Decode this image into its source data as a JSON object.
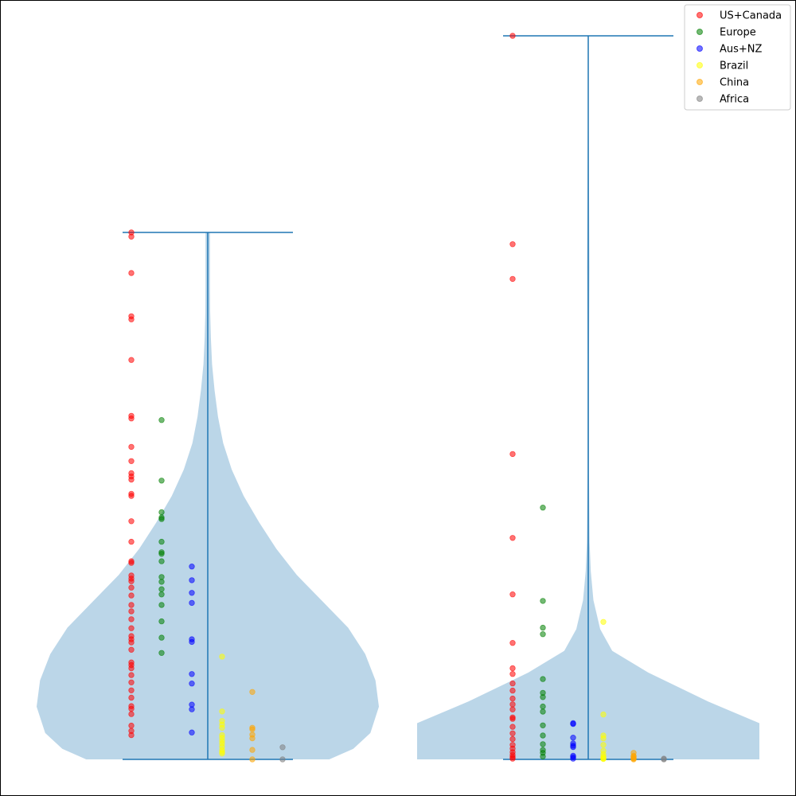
{
  "chart_data": {
    "type": "scatter",
    "title": "",
    "xlabel": "",
    "ylabel": "",
    "grid": false,
    "axes_visible": false,
    "legend_placement": "top-right",
    "violin_color": "#1f77b4",
    "violins": [
      {
        "id": "left",
        "min": 0,
        "max": 100,
        "density": [
          {
            "y": 0,
            "w": 0.71
          },
          {
            "y": 2,
            "w": 0.85
          },
          {
            "y": 5,
            "w": 0.95
          },
          {
            "y": 10,
            "w": 1.0
          },
          {
            "y": 15,
            "w": 0.98
          },
          {
            "y": 20,
            "w": 0.92
          },
          {
            "y": 25,
            "w": 0.82
          },
          {
            "y": 30,
            "w": 0.67
          },
          {
            "y": 35,
            "w": 0.52
          },
          {
            "y": 40,
            "w": 0.4
          },
          {
            "y": 45,
            "w": 0.3
          },
          {
            "y": 50,
            "w": 0.21
          },
          {
            "y": 55,
            "w": 0.14
          },
          {
            "y": 60,
            "w": 0.09
          },
          {
            "y": 65,
            "w": 0.06
          },
          {
            "y": 70,
            "w": 0.04
          },
          {
            "y": 75,
            "w": 0.025
          },
          {
            "y": 80,
            "w": 0.018
          },
          {
            "y": 85,
            "w": 0.014
          },
          {
            "y": 90,
            "w": 0.013
          },
          {
            "y": 100,
            "w": 0.013
          }
        ]
      },
      {
        "id": "right",
        "min": 0,
        "max": 100,
        "density": [
          {
            "y": 0,
            "w": 1.0
          },
          {
            "y": 2,
            "w": 1.0
          },
          {
            "y": 5,
            "w": 1.0
          },
          {
            "y": 8,
            "w": 0.7
          },
          {
            "y": 12,
            "w": 0.35
          },
          {
            "y": 15,
            "w": 0.14
          },
          {
            "y": 18,
            "w": 0.07
          },
          {
            "y": 22,
            "w": 0.03
          },
          {
            "y": 26,
            "w": 0.015
          },
          {
            "y": 30,
            "w": 0.008
          },
          {
            "y": 40,
            "w": 0.004
          },
          {
            "y": 55,
            "w": 0.004
          },
          {
            "y": 68,
            "w": 0.007
          },
          {
            "y": 80,
            "w": 0.004
          },
          {
            "y": 90,
            "w": 0.002
          },
          {
            "y": 100,
            "w": 0.0
          }
        ]
      }
    ],
    "series": [
      {
        "name": "US+Canada",
        "color": "#ff0000",
        "left": [
          100,
          99.2,
          92.3,
          84.1,
          83.5,
          75.8,
          65.2,
          64.7,
          59.3,
          56.6,
          54.3,
          53.7,
          53.1,
          50.4,
          50.0,
          45.2,
          41.3,
          37.6,
          37.3,
          34.9,
          34.3,
          33.8,
          32.6,
          31.1,
          29.3,
          28.1,
          26.6,
          24.9,
          23.4,
          22.8,
          22.2,
          20.8,
          18.4,
          17.9,
          17.3,
          16.0,
          14.6,
          13.1,
          11.7,
          10.1,
          9.6,
          8.6,
          6.4,
          5.4,
          4.6
        ],
        "right": [
          100,
          71.2,
          66.4,
          42.2,
          30.6,
          22.8,
          16.1,
          12.6,
          11.8,
          10.5,
          9.5,
          8.4,
          7.6,
          6.9,
          5.8,
          5.6,
          4.5,
          3.6,
          2.8,
          2.0,
          1.5,
          1.0,
          0.6,
          0.3,
          0.1
        ]
      },
      {
        "name": "Europe",
        "color": "#008000",
        "left": [
          64.4,
          52.9,
          46.9,
          45.9,
          45.6,
          41.3,
          39.3,
          39.0,
          37.6,
          34.6,
          33.7,
          32.3,
          31.3,
          29.3,
          26.2,
          23.1,
          20.2
        ],
        "right": [
          34.8,
          21.9,
          18.2,
          17.3,
          11.1,
          9.2,
          8.6,
          7.3,
          6.6,
          4.7,
          3.3,
          2.1,
          1.3,
          0.9,
          0.4
        ]
      },
      {
        "name": "Aus+NZ",
        "color": "#0000ff",
        "left": [
          36.6,
          34.0,
          31.6,
          29.7,
          22.8,
          22.3,
          16.2,
          14.4,
          10.4,
          9.5,
          5.1
        ],
        "right": [
          5.0,
          4.9,
          3.0,
          2.2,
          1.9,
          1.7,
          0.5,
          0.3,
          0.1
        ]
      },
      {
        "name": "Brazil",
        "color": "#ffff00",
        "left": [
          19.5,
          9.1,
          7.3,
          6.6,
          6.0,
          4.6,
          4.1,
          3.5,
          3.0,
          2.4,
          1.8,
          1.4,
          1.1
        ],
        "right": [
          19.0,
          6.2,
          3.3,
          2.9,
          2.0,
          1.2,
          0.7,
          0.4,
          0.2,
          0.1,
          0.05
        ]
      },
      {
        "name": "China",
        "color": "#ffa500",
        "left": [
          12.8,
          6.0,
          5.7,
          4.7,
          4.0,
          1.8,
          0.0
        ],
        "right": [
          0.9,
          0.5,
          0.4,
          0.2,
          0.1,
          0.0
        ]
      },
      {
        "name": "Africa",
        "color": "#808080",
        "left": [
          2.3,
          0.0
        ],
        "right": [
          0.1,
          0.0
        ]
      }
    ]
  }
}
